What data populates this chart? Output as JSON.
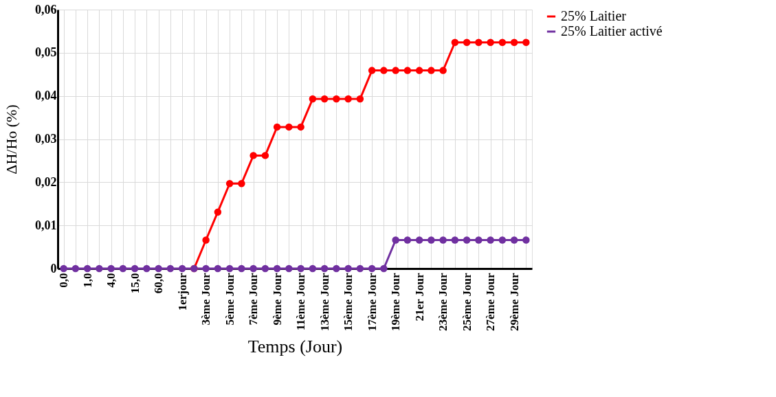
{
  "chart_data": {
    "type": "line",
    "xlabel": "Temps (Jour)",
    "ylabel": "ΔH/Ho (%)",
    "categories": [
      "0,0",
      null,
      "1,0",
      null,
      "4,0",
      null,
      "15,0",
      null,
      "60,0",
      null,
      "1erjour",
      null,
      "3ème Jour",
      null,
      "5ème Jour",
      null,
      "7ème Jour",
      null,
      "9ème Jour",
      null,
      "11ème Jour",
      null,
      "13ème Jour",
      null,
      "15ème Jour",
      null,
      "17ème Jour",
      null,
      "19ème Jour",
      null,
      "21er Jour",
      null,
      "23ème Jour",
      null,
      "25ème Jour",
      null,
      "27ème Jour",
      null,
      "29ème Jour",
      null
    ],
    "series": [
      {
        "name": "25% Laitier",
        "color": "#ff0000",
        "values": [
          null,
          null,
          null,
          null,
          null,
          null,
          null,
          null,
          null,
          null,
          null,
          0,
          0.0066,
          0.0131,
          0.0197,
          0.0197,
          0.0262,
          0.0262,
          0.0328,
          0.0328,
          0.0328,
          0.0393,
          0.0393,
          0.0393,
          0.0393,
          0.0393,
          0.0459,
          0.0459,
          0.0459,
          0.0459,
          0.0459,
          0.0459,
          0.0459,
          0.0524,
          0.0524,
          0.0524,
          0.0524,
          0.0524,
          0.0524,
          0.0524
        ]
      },
      {
        "name": "25% Laitier activé",
        "color": "#7030a0",
        "values": [
          0,
          0,
          0,
          0,
          0,
          0,
          0,
          0,
          0,
          0,
          0,
          0,
          0,
          0,
          0,
          0,
          0,
          0,
          0,
          0,
          0,
          0,
          0,
          0,
          0,
          0,
          0,
          0,
          0.0066,
          0.0066,
          0.0066,
          0.0066,
          0.0066,
          0.0066,
          0.0066,
          0.0066,
          0.0066,
          0.0066,
          0.0066,
          0.0066
        ]
      }
    ],
    "ylim": [
      0,
      0.06
    ],
    "yticks": [
      {
        "value": 0,
        "label": "0"
      },
      {
        "value": 0.01,
        "label": "0,01"
      },
      {
        "value": 0.02,
        "label": "0,02"
      },
      {
        "value": 0.03,
        "label": "0,03"
      },
      {
        "value": 0.04,
        "label": "0,04"
      },
      {
        "value": 0.05,
        "label": "0,05"
      },
      {
        "value": 0.06,
        "label": "0,06"
      }
    ],
    "grid": true,
    "legend": "right",
    "marker": "circle",
    "line_style": "solid"
  }
}
